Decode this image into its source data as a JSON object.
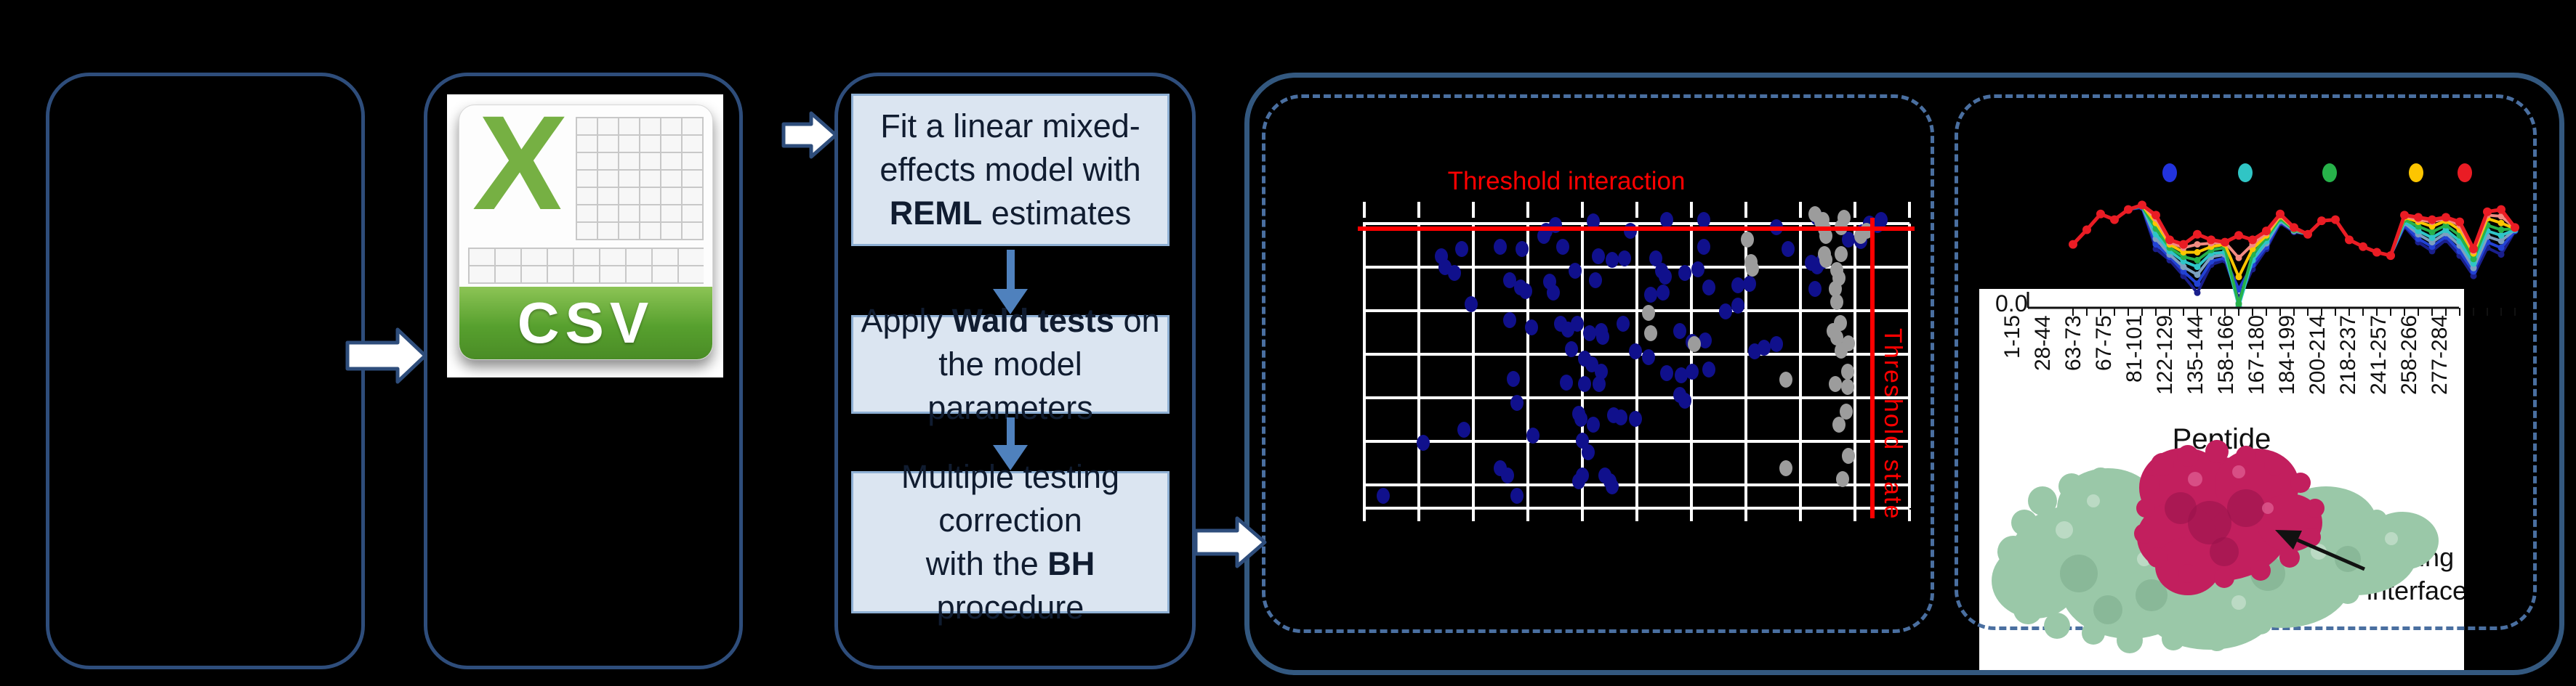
{
  "figure": {
    "background": "#000000",
    "colors": {
      "panel_border": "#2e4d7b",
      "outer_border": "#33587f",
      "dashed_border": "#4a6fa0",
      "step_fill": "#dbe5f1",
      "step_border": "#8fb0d4",
      "step_text": "#101c30",
      "flow_arrow_blue": "#4f81bd",
      "block_arrow_fill": "#ffffff",
      "threshold_red": "#ff0000",
      "grid_white": "#ffffff",
      "csv_green": "#76b043",
      "csv_banner_green": "#57a02e",
      "protein_green": "#9ac8a8",
      "protein_crimson": "#c21f5e"
    }
  },
  "csv": {
    "label": "CSV"
  },
  "flow": {
    "steps": [
      {
        "lines": [
          [
            {
              "text": "Fit a linear mixed-",
              "bold": false
            }
          ],
          [
            {
              "text": "effects model with",
              "bold": false
            }
          ],
          [
            {
              "text": "REML",
              "bold": true
            },
            {
              "text": " estimates",
              "bold": false
            }
          ]
        ]
      },
      {
        "lines": [
          [
            {
              "text": "Apply ",
              "bold": false
            },
            {
              "text": "Wald tests",
              "bold": true
            },
            {
              "text": " on",
              "bold": false
            }
          ],
          [
            {
              "text": "the model parameters",
              "bold": false
            }
          ]
        ]
      },
      {
        "lines": [
          [
            {
              "text": "Multiple testing",
              "bold": false
            }
          ],
          [
            {
              "text": "correction",
              "bold": false
            }
          ],
          [
            {
              "text": "with the ",
              "bold": false
            },
            {
              "text": "BH",
              "bold": true
            },
            {
              "text": " procedure",
              "bold": false
            }
          ]
        ]
      }
    ]
  },
  "scatter": {
    "title": "Threshold interaction",
    "side_label": "Threshold state",
    "threshold_h_y": 315,
    "threshold_v_x": 2576
  },
  "uptake": {
    "ytick": "0.0",
    "xlabel": "Peptide",
    "annotation": "Binding interface"
  },
  "chart_data": [
    {
      "type": "scatter",
      "title": "Threshold interaction",
      "xlabel": "",
      "ylabel": "",
      "annotations": [
        "Threshold interaction (horizontal red line)",
        "Threshold state (vertical red line)"
      ],
      "axis_note": "axes unlabeled in source (black text on black background)",
      "series": [
        {
          "name": "peptides-significant-blue",
          "color": "#10108c",
          "points": [
            [
              1903,
              683
            ],
            [
              1958,
              610
            ],
            [
              1983,
              353
            ],
            [
              1988,
              368
            ],
            [
              2001,
              376
            ],
            [
              2011,
              343
            ],
            [
              2014,
              592
            ],
            [
              2024,
              419
            ],
            [
              2064,
              340
            ],
            [
              2064,
              645
            ],
            [
              2074,
              655
            ],
            [
              2077,
              386
            ],
            [
              2077,
              441
            ],
            [
              2082,
              522
            ],
            [
              2087,
              555
            ],
            [
              2087,
              683
            ],
            [
              2092,
              396
            ],
            [
              2094,
              343
            ],
            [
              2099,
              401
            ],
            [
              2107,
              451
            ],
            [
              2109,
              600
            ],
            [
              2124,
              325
            ],
            [
              2127,
              318
            ],
            [
              2132,
              388
            ],
            [
              2137,
              403
            ],
            [
              2140,
              310
            ],
            [
              2147,
              446
            ],
            [
              2150,
              340
            ],
            [
              2155,
              527
            ],
            [
              2157,
              454
            ],
            [
              2162,
              481
            ],
            [
              2167,
              373
            ],
            [
              2170,
              446
            ],
            [
              2172,
              570
            ],
            [
              2172,
              663
            ],
            [
              2175,
              577
            ],
            [
              2177,
              607
            ],
            [
              2177,
              655
            ],
            [
              2180,
              494
            ],
            [
              2180,
              529
            ],
            [
              2185,
              623
            ],
            [
              2187,
              459
            ],
            [
              2190,
              502
            ],
            [
              2192,
              305
            ],
            [
              2192,
              585
            ],
            [
              2195,
              386
            ],
            [
              2199,
              353
            ],
            [
              2200,
              529
            ],
            [
              2203,
              456
            ],
            [
              2203,
              512
            ],
            [
              2205,
              464
            ],
            [
              2208,
              655
            ],
            [
              2215,
              663
            ],
            [
              2218,
              358
            ],
            [
              2218,
              670
            ],
            [
              2220,
              572
            ],
            [
              2230,
              575
            ],
            [
              2233,
              446
            ],
            [
              2235,
              356
            ],
            [
              2243,
              318
            ],
            [
              2250,
              484
            ],
            [
              2250,
              577
            ],
            [
              2268,
              492
            ],
            [
              2271,
              406
            ],
            [
              2278,
              356
            ],
            [
              2286,
              373
            ],
            [
              2288,
              403
            ],
            [
              2291,
              381
            ],
            [
              2293,
              303
            ],
            [
              2293,
              514
            ],
            [
              2311,
              456
            ],
            [
              2311,
              544
            ],
            [
              2313,
              517
            ],
            [
              2318,
              376
            ],
            [
              2318,
              552
            ],
            [
              2328,
              471
            ],
            [
              2328,
              512
            ],
            [
              2336,
              371
            ],
            [
              2344,
              303
            ],
            [
              2344,
              340
            ],
            [
              2346,
              469
            ],
            [
              2351,
              396
            ],
            [
              2351,
              509
            ],
            [
              2374,
              429
            ],
            [
              2391,
              393
            ],
            [
              2391,
              421
            ],
            [
              2407,
              391
            ],
            [
              2414,
              484
            ],
            [
              2427,
              479
            ],
            [
              2444,
              313
            ],
            [
              2444,
              474
            ],
            [
              2460,
              343
            ],
            [
              2492,
              362
            ],
            [
              2497,
              398
            ],
            [
              2500,
              300
            ],
            [
              2500,
              367
            ],
            [
              2507,
              360
            ],
            [
              2543,
              330
            ],
            [
              2560,
              332
            ],
            [
              2562,
              320
            ],
            [
              2572,
              308
            ],
            [
              2583,
              310
            ],
            [
              2588,
              303
            ]
          ]
        },
        {
          "name": "peptides-nonsignificant-gray",
          "color": "#9c9c9c",
          "points": [
            [
              2404,
              330
            ],
            [
              2409,
              361
            ],
            [
              2411,
              370
            ],
            [
              2268,
              431
            ],
            [
              2271,
              459
            ],
            [
              2331,
              474
            ],
            [
              2457,
              523
            ],
            [
              2457,
              645
            ],
            [
              2497,
              295
            ],
            [
              2505,
              305
            ],
            [
              2508,
              303
            ],
            [
              2510,
              315
            ],
            [
              2510,
              350
            ],
            [
              2512,
              325
            ],
            [
              2512,
              358
            ],
            [
              2522,
              456
            ],
            [
              2525,
              398
            ],
            [
              2525,
              529
            ],
            [
              2527,
              372
            ],
            [
              2527,
              416
            ],
            [
              2527,
              465
            ],
            [
              2530,
              383
            ],
            [
              2530,
              585
            ],
            [
              2532,
              445
            ],
            [
              2533,
              313
            ],
            [
              2533,
              350
            ],
            [
              2533,
              483
            ],
            [
              2535,
              660
            ],
            [
              2537,
              300
            ],
            [
              2540,
              567
            ],
            [
              2542,
              512
            ],
            [
              2542,
              533
            ],
            [
              2543,
              473
            ],
            [
              2543,
              628
            ],
            [
              2560,
              325
            ],
            [
              2568,
              318
            ]
          ]
        }
      ]
    },
    {
      "type": "line",
      "title": "",
      "xlabel": "Peptide",
      "ytick_labels": [
        "0.0"
      ],
      "x_tick_labels": [
        "1-15",
        "28-44",
        "63-73",
        "67-75",
        "81-101",
        "122-129",
        "135-144",
        "158-166",
        "167-180",
        "184-199",
        "200-214",
        "218-237",
        "241-257",
        "258-266",
        "277-284"
      ],
      "legend_dot_colors": [
        "#2233dd",
        "#30c5c5",
        "#27b24a",
        "#fdc500",
        "#ea1c24"
      ],
      "series": [
        {
          "name": "series-navy",
          "color": "#1a1f8c",
          "values": [
            43,
            30,
            16,
            21,
            12,
            10,
            47,
            57,
            71,
            86,
            61,
            57,
            91,
            65,
            47,
            24,
            32,
            34,
            22,
            21,
            39,
            45,
            50,
            53,
            27,
            41,
            49,
            39,
            53,
            71,
            46,
            52,
            31
          ]
        },
        {
          "name": "series-blue",
          "color": "#2242d4",
          "values": [
            43,
            30,
            16,
            21,
            12,
            10,
            43,
            54,
            67,
            78,
            58,
            55,
            83,
            61,
            45,
            23,
            31,
            34,
            22,
            21,
            39,
            45,
            50,
            53,
            26,
            38,
            45,
            36,
            49,
            67,
            41,
            46,
            31
          ]
        },
        {
          "name": "series-steel",
          "color": "#7da0c0",
          "values": [
            43,
            30,
            16,
            21,
            12,
            9,
            38,
            52,
            63,
            70,
            54,
            52,
            95,
            57,
            42,
            22,
            31,
            34,
            22,
            21,
            39,
            45,
            50,
            53,
            24,
            34,
            41,
            33,
            44,
            64,
            36,
            40,
            30
          ]
        },
        {
          "name": "series-cyan",
          "color": "#2fc5c8",
          "values": [
            43,
            30,
            16,
            21,
            12,
            9,
            34,
            49,
            58,
            63,
            51,
            50,
            98,
            57,
            40,
            21,
            30,
            34,
            22,
            21,
            39,
            45,
            50,
            53,
            23,
            31,
            37,
            30,
            40,
            60,
            31,
            35,
            30
          ]
        },
        {
          "name": "series-green",
          "color": "#27b24a",
          "values": [
            43,
            30,
            16,
            21,
            12,
            9,
            29,
            46,
            54,
            57,
            48,
            46,
            96,
            52,
            37,
            20,
            30,
            34,
            22,
            21,
            39,
            45,
            50,
            53,
            21,
            27,
            32,
            26,
            35,
            56,
            26,
            30,
            29
          ]
        },
        {
          "name": "series-yellow",
          "color": "#fdc500",
          "values": [
            43,
            30,
            16,
            21,
            12,
            8,
            24,
            43,
            50,
            50,
            45,
            43,
            72,
            47,
            35,
            18,
            29,
            34,
            22,
            21,
            39,
            45,
            50,
            53,
            19,
            23,
            27,
            22,
            30,
            51,
            20,
            24,
            29
          ]
        },
        {
          "name": "series-salmon",
          "color": "#f28b82",
          "values": [
            43,
            30,
            16,
            21,
            12,
            8,
            20,
            41,
            46,
            43,
            42,
            41,
            55,
            43,
            33,
            17,
            29,
            34,
            22,
            21,
            39,
            45,
            50,
            53,
            18,
            21,
            23,
            20,
            26,
            49,
            17,
            18,
            28
          ]
        },
        {
          "name": "series-red",
          "color": "#ea1c24",
          "values": [
            43,
            30,
            16,
            21,
            12,
            8,
            17,
            39,
            43,
            34,
            39,
            41,
            35,
            39,
            31,
            16,
            28,
            34,
            22,
            21,
            39,
            45,
            50,
            53,
            17,
            19,
            21,
            19,
            23,
            47,
            14,
            12,
            28
          ]
        }
      ]
    }
  ]
}
